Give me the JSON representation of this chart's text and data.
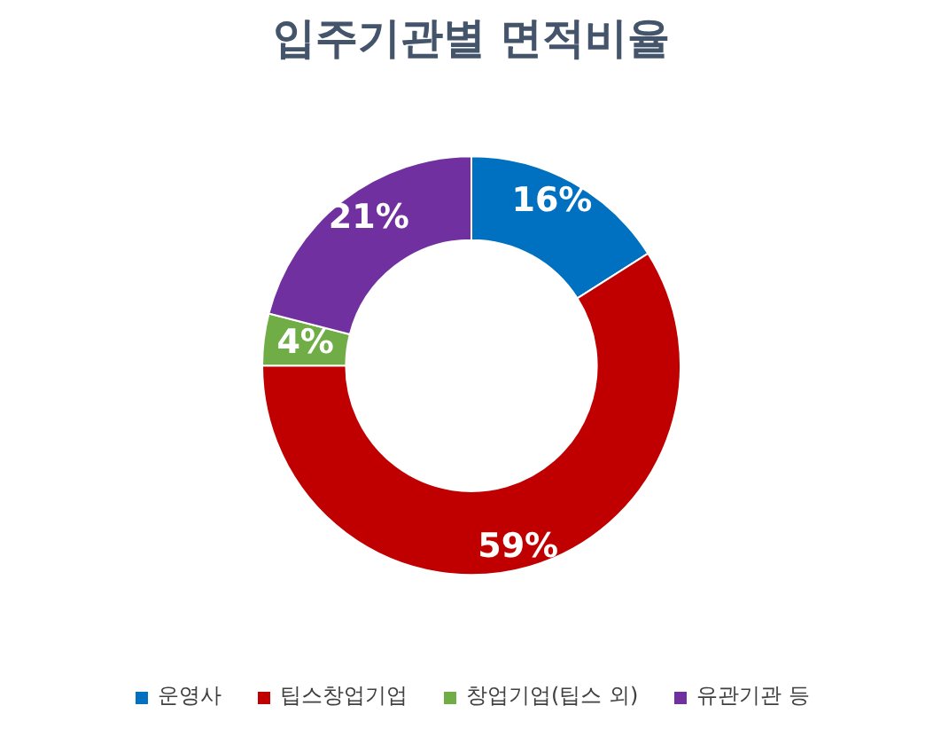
{
  "chart_data": {
    "type": "donut",
    "title": "입주기관별 면적비율",
    "categories": [
      "운영사",
      "팁스창업기업",
      "창업기업(팁스 외)",
      "유관기관 등"
    ],
    "values": [
      16,
      59,
      4,
      21
    ],
    "colors": [
      "#0070c0",
      "#c00000",
      "#70ad47",
      "#7030a0"
    ],
    "value_labels": [
      "16%",
      "59%",
      "4%",
      "21%"
    ],
    "legend": "bottom"
  }
}
